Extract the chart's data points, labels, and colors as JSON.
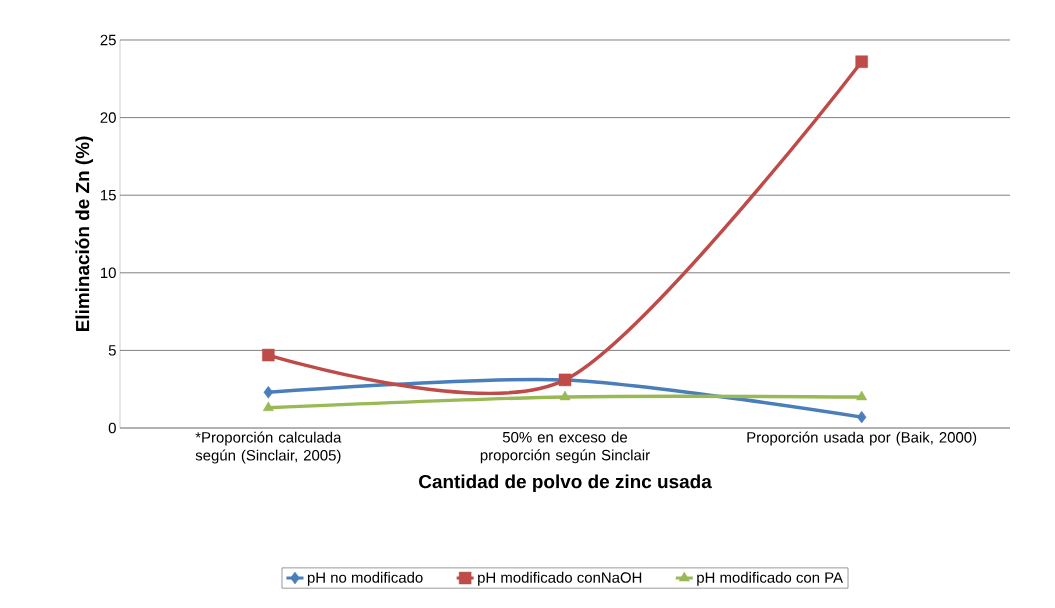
{
  "chart_data": {
    "type": "line",
    "xlabel": "Cantidad de polvo de zinc usada",
    "ylabel": "Eliminación de Zn (%)",
    "categories": [
      "*Proporción calculada según (Sinclair, 2005)",
      "50% en exceso de proporción según Sinclair",
      "Proporción usada por (Baik, 2000)"
    ],
    "series": [
      {
        "name": "pH no modificado",
        "color": "#4a7ebb",
        "marker": "diamond",
        "values": [
          2.3,
          3.1,
          0.7
        ]
      },
      {
        "name": "pH modificado conNaOH",
        "color": "#be4b48",
        "marker": "square",
        "values": [
          4.7,
          3.1,
          23.6
        ]
      },
      {
        "name": "pH modificado con PA",
        "color": "#98b954",
        "marker": "triangle",
        "values": [
          1.3,
          2.0,
          2.0
        ]
      }
    ],
    "ylim": [
      0,
      25
    ],
    "yticks": [
      0,
      5,
      10,
      15,
      20,
      25
    ],
    "grid": "y",
    "legend": "bottom"
  }
}
